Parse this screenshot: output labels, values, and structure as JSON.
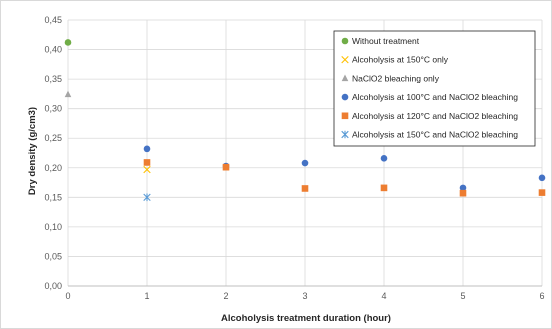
{
  "chart_data": {
    "type": "scatter",
    "xlabel": "Alcoholysis treatment duration (hour)",
    "ylabel": "Dry density (g/cm3)",
    "xlim": [
      0,
      6
    ],
    "ylim": [
      0,
      0.45
    ],
    "x_ticks": [
      "0",
      "1",
      "2",
      "3",
      "4",
      "5",
      "6"
    ],
    "y_ticks": [
      "0,00",
      "0,05",
      "0,10",
      "0,15",
      "0,20",
      "0,25",
      "0,30",
      "0,35",
      "0,40",
      "0,45"
    ],
    "grid": "horizontal",
    "legend_position": "top-right",
    "series": [
      {
        "name": "Without treatment",
        "marker": "circle",
        "color": "#70ad47",
        "points": [
          [
            0,
            0.412
          ]
        ]
      },
      {
        "name": "Alcoholysis at 150°C only",
        "marker": "x",
        "color": "#ffc000",
        "points": [
          [
            1,
            0.197
          ]
        ]
      },
      {
        "name": "NaClO2 bleaching only",
        "marker": "triangle",
        "color": "#a5a5a5",
        "points": [
          [
            0,
            0.324
          ]
        ]
      },
      {
        "name": "Alcoholysis at 100°C and NaClO2 bleaching",
        "marker": "circle",
        "color": "#4472c4",
        "points": [
          [
            1,
            0.232
          ],
          [
            2,
            0.203
          ],
          [
            3,
            0.208
          ],
          [
            4,
            0.216
          ],
          [
            5,
            0.166
          ],
          [
            6,
            0.183
          ]
        ]
      },
      {
        "name": "Alcoholysis at 120°C and NaClO2 bleaching",
        "marker": "square",
        "color": "#ed7d31",
        "points": [
          [
            1,
            0.209
          ],
          [
            2,
            0.201
          ],
          [
            3,
            0.165
          ],
          [
            4,
            0.166
          ],
          [
            5,
            0.157
          ],
          [
            6,
            0.158
          ]
        ]
      },
      {
        "name": "Alcoholysis at 150°C and NaClO2 bleaching",
        "marker": "asterisk",
        "color": "#5b9bd5",
        "points": [
          [
            1,
            0.15
          ]
        ]
      }
    ]
  }
}
